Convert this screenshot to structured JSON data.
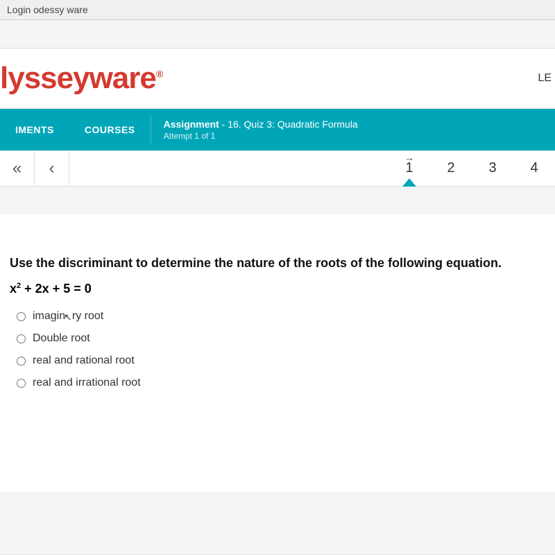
{
  "browser": {
    "title": "Login odessy ware"
  },
  "brand": {
    "logo_text": "lysseyware",
    "reg": "®",
    "right_label": "LE"
  },
  "nav": {
    "item1": "IMENTS",
    "item2": "COURSES",
    "assignment_label": "Assignment",
    "assignment_title": "- 16. Quiz 3: Quadratic Formula",
    "attempt": "Attempt 1 of 1"
  },
  "pager": {
    "first": "«",
    "prev": "‹",
    "n1": "1",
    "n2": "2",
    "n3": "3",
    "n4": "4",
    "arrow": "→"
  },
  "question": {
    "prompt": "Use the discriminant to determine the nature of the roots of the following equation.",
    "eq_pre": "x",
    "eq_sup": "2",
    "eq_post": " + 2x + 5 = 0",
    "opt1": "imaginary root",
    "opt2": "Double root",
    "opt3": "real and rational root",
    "opt4": "real and irrational root"
  }
}
